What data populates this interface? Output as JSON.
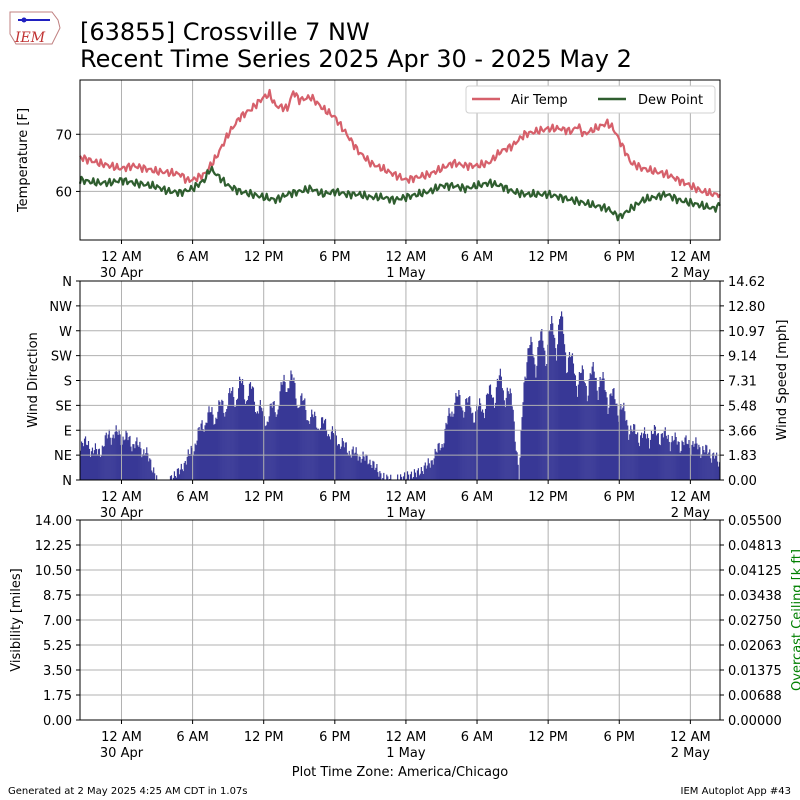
{
  "header": {
    "logo_text": "IEM",
    "title_line1": "[63855] Crossville 7 NW",
    "title_line2": "Recent Time Series 2025 Apr 30 - 2025 May 2"
  },
  "footer": {
    "generated": "Generated at 2 May 2025 4:25 AM CDT in 1.07s",
    "app": "IEM Autoplot App #43"
  },
  "colors": {
    "air_temp": "#d6606b",
    "dew_point": "#2f5e2f",
    "wind_speed": "#383896",
    "ceiling_label": "#008000",
    "grid": "#b0b0b0"
  },
  "chart_data": [
    {
      "type": "line",
      "ylabel": "Temperature [F]",
      "ylim": [
        51.5,
        79.5
      ],
      "yticks": [
        60,
        70
      ],
      "grid": true,
      "legend": {
        "placement": "top-right",
        "entries": [
          "Air Temp",
          "Dew Point"
        ]
      },
      "x_ticks": [
        {
          "hour": 0,
          "label": "12 AM",
          "sub": "30 Apr"
        },
        {
          "hour": 6,
          "label": "6 AM",
          "sub": ""
        },
        {
          "hour": 12,
          "label": "12 PM",
          "sub": ""
        },
        {
          "hour": 18,
          "label": "6 PM",
          "sub": ""
        },
        {
          "hour": 24,
          "label": "12 AM",
          "sub": "1 May"
        },
        {
          "hour": 30,
          "label": "6 AM",
          "sub": ""
        },
        {
          "hour": 36,
          "label": "12 PM",
          "sub": ""
        },
        {
          "hour": 42,
          "label": "6 PM",
          "sub": ""
        },
        {
          "hour": 48,
          "label": "12 AM",
          "sub": "2 May"
        }
      ],
      "x_range_hours": [
        -3.5,
        50.5
      ],
      "series": [
        {
          "name": "Air Temp",
          "hours": [
            -3.5,
            -2,
            -1,
            0,
            1,
            2,
            3,
            4,
            5,
            5.5,
            6,
            7,
            8,
            9,
            10,
            11,
            12,
            12.5,
            13,
            14,
            14.5,
            15,
            16,
            17,
            18,
            19,
            20,
            21,
            22,
            23,
            24,
            25,
            26,
            27,
            28,
            29,
            30,
            31,
            32,
            33,
            34,
            35,
            36,
            37,
            38,
            38.5,
            39,
            40,
            41,
            41.5,
            42,
            43,
            44,
            45,
            46,
            47,
            48,
            49,
            50,
            50.5
          ],
          "values": [
            66,
            65,
            64.5,
            64,
            64.5,
            64,
            63.5,
            63.3,
            63,
            62,
            62,
            63,
            66,
            70,
            73,
            74.5,
            76.5,
            77,
            75,
            74.5,
            77.5,
            76,
            76.5,
            74.5,
            73,
            70,
            67,
            65,
            64,
            63,
            62,
            62.5,
            63,
            64,
            65,
            64.5,
            64.5,
            65,
            67,
            68,
            70,
            70.5,
            71,
            71,
            70.5,
            71.5,
            70,
            71,
            72,
            71,
            69,
            65,
            64,
            63.5,
            63,
            62,
            61,
            60,
            59.5,
            59.5
          ]
        },
        {
          "name": "Dew Point",
          "hours": [
            -3.5,
            -2,
            -1,
            0,
            1,
            2,
            3,
            4,
            5,
            6,
            7,
            7.5,
            8,
            9,
            10,
            11,
            12,
            13,
            14,
            15,
            16,
            17,
            18,
            19,
            20,
            21,
            22,
            23,
            24,
            25,
            26,
            27,
            28,
            29,
            30,
            31,
            32,
            33,
            34,
            35,
            36,
            37,
            38,
            39,
            40,
            41,
            42,
            43,
            44,
            45,
            46,
            47,
            48,
            49,
            50,
            50.5
          ],
          "values": [
            62,
            61.5,
            61.5,
            62,
            61.5,
            61.2,
            60.8,
            60,
            59.8,
            60.5,
            62,
            64,
            63,
            61,
            60,
            59.5,
            59,
            58.5,
            59.5,
            60,
            60.5,
            59.5,
            60,
            59.5,
            59.5,
            59,
            59,
            58.5,
            59,
            59.5,
            60,
            61,
            61,
            60.5,
            61,
            61.5,
            61,
            60,
            59.5,
            59.5,
            59.5,
            59,
            58.5,
            58,
            57.5,
            57,
            55.5,
            57,
            58.5,
            59,
            59.5,
            58.5,
            58,
            57.5,
            57,
            57.5
          ]
        }
      ]
    },
    {
      "type": "bar",
      "ylabel": "Wind Direction",
      "y2label": "Wind Speed [mph]",
      "ylim_speed": [
        0,
        14.62
      ],
      "direction_ticks": [
        "N",
        "NE",
        "E",
        "SE",
        "S",
        "SW",
        "W",
        "NW",
        "N"
      ],
      "speed_ticks": [
        "0.00",
        "1.83",
        "3.66",
        "5.48",
        "7.31",
        "9.14",
        "10.97",
        "12.80",
        "14.62"
      ],
      "grid": true,
      "series": [
        {
          "name": "Wind Speed",
          "hours": [
            -3.5,
            -2,
            -1,
            0,
            1,
            2,
            3,
            4,
            5,
            5.5,
            6,
            7,
            8,
            9,
            10,
            11,
            12,
            13,
            14,
            15,
            16,
            17,
            18,
            19,
            20,
            21,
            22,
            23,
            24,
            25,
            26,
            27,
            28,
            29,
            30,
            31,
            32,
            33,
            33.5,
            34,
            35,
            36,
            37,
            38,
            39,
            40,
            41,
            42,
            43,
            44,
            45,
            46,
            47,
            48,
            49,
            50,
            50.5
          ],
          "values": [
            3.2,
            2.2,
            3.8,
            3.6,
            3,
            2.3,
            0,
            0,
            0.9,
            1.8,
            2.6,
            5,
            5.5,
            6.5,
            7.5,
            7,
            5,
            6,
            8.5,
            6.5,
            5,
            4.5,
            3.5,
            2.5,
            2,
            1.5,
            0.2,
            0,
            0.3,
            0.6,
            1.4,
            3,
            6.5,
            6.2,
            5.5,
            6.8,
            8,
            6,
            0,
            10,
            10.5,
            11.5,
            12.5,
            9,
            8,
            8.5,
            7,
            6,
            4,
            3.5,
            3.8,
            3.5,
            3,
            3,
            2.5,
            2,
            1
          ]
        }
      ]
    },
    {
      "type": "line",
      "ylabel": "Visibility [miles]",
      "y2label": "Overcast Ceiling [k ft]",
      "yticks_left": [
        "0.00",
        "1.75",
        "3.50",
        "5.25",
        "7.00",
        "8.75",
        "10.50",
        "12.25",
        "14.00"
      ],
      "yticks_right": [
        "0.00000",
        "0.00688",
        "0.01375",
        "0.02063",
        "0.02750",
        "0.03438",
        "0.04125",
        "0.04813",
        "0.05500"
      ],
      "xlabel": "Plot Time Zone: America/Chicago",
      "grid": true,
      "series": []
    }
  ]
}
